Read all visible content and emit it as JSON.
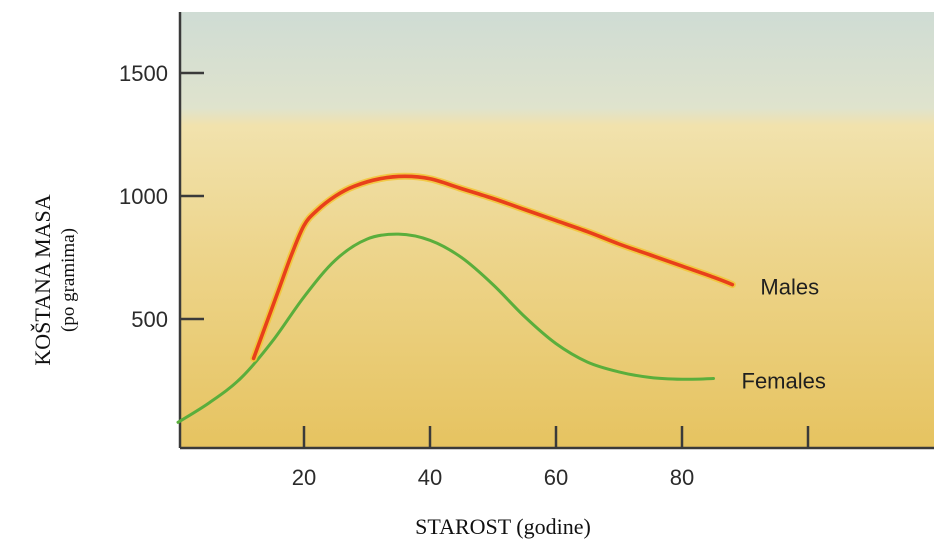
{
  "chart_data": {
    "type": "line",
    "ylabel": "KOŠTANA MASA",
    "ylabel_sub": "(po gramima)",
    "xlabel": "STAROST (godine)",
    "xlim": [
      0,
      100
    ],
    "ylim": [
      0,
      1750
    ],
    "xticks": [
      20,
      40,
      60,
      80
    ],
    "xticks_unlabeled": [
      100
    ],
    "yticks": [
      500,
      1000,
      1500
    ],
    "series": [
      {
        "name": "Males",
        "color": "#e8401a",
        "x": [
          12,
          14,
          16,
          18,
          20,
          22,
          25,
          28,
          32,
          36,
          40,
          45,
          50,
          55,
          60,
          65,
          70,
          75,
          80,
          85,
          88
        ],
        "y": [
          340,
          480,
          620,
          760,
          880,
          940,
          1000,
          1040,
          1070,
          1080,
          1070,
          1030,
          990,
          945,
          900,
          855,
          805,
          760,
          715,
          670,
          640
        ]
      },
      {
        "name": "Females",
        "color": "#5aae3c",
        "x": [
          0,
          5,
          10,
          15,
          20,
          25,
          30,
          35,
          40,
          45,
          50,
          55,
          60,
          65,
          70,
          75,
          80,
          85
        ],
        "y": [
          80,
          160,
          260,
          410,
          590,
          740,
          825,
          845,
          820,
          750,
          640,
          510,
          400,
          325,
          285,
          262,
          255,
          258
        ]
      }
    ]
  },
  "colors": {
    "background_top": "#cfdcd2",
    "background_bottom": "#e9c76f",
    "axis": "#3a3a3a"
  }
}
